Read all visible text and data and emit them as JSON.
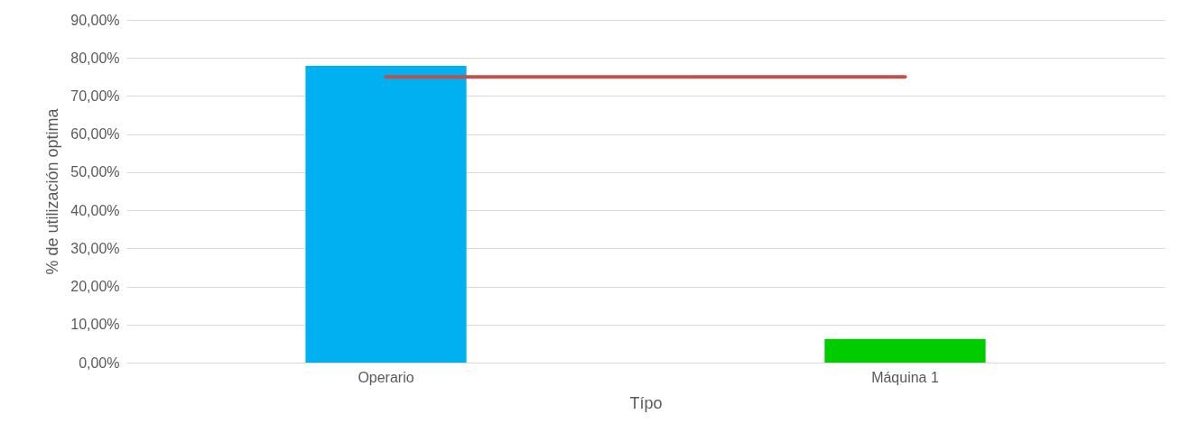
{
  "chart_data": {
    "type": "bar",
    "xlabel": "Típo",
    "ylabel": "% de utilización optima",
    "categories": [
      "Operario",
      "Máquina 1"
    ],
    "series": [
      {
        "colors": [
          "#00b0f0",
          "#00cc00"
        ],
        "values": [
          77.9,
          6.2
        ]
      },
      {
        "type": "line",
        "color": "#c0504d",
        "values": [
          75,
          75
        ]
      }
    ],
    "ylim": [
      0,
      90
    ],
    "yticks": [
      {
        "value": 0,
        "label": "0,00%"
      },
      {
        "value": 10,
        "label": "10,00%"
      },
      {
        "value": 20,
        "label": "20,00%"
      },
      {
        "value": 30,
        "label": "30,00%"
      },
      {
        "value": 40,
        "label": "40,00%"
      },
      {
        "value": 50,
        "label": "50,00%"
      },
      {
        "value": 60,
        "label": "60,00%"
      },
      {
        "value": 70,
        "label": "70,00%"
      },
      {
        "value": 80,
        "label": "80,00%"
      },
      {
        "value": 90,
        "label": "90,00%"
      }
    ],
    "grid": "y"
  }
}
